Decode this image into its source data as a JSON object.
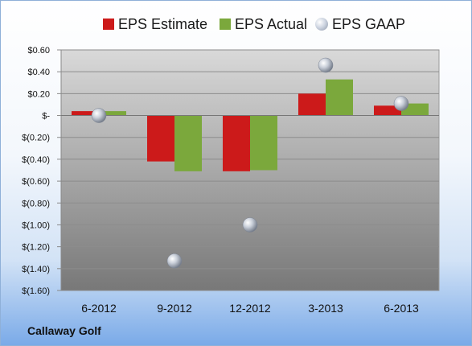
{
  "chart_data": {
    "type": "bar",
    "categories": [
      "6-2012",
      "9-2012",
      "12-2012",
      "3-2013",
      "6-2013"
    ],
    "series": [
      {
        "name": "EPS Estimate",
        "values": [
          0.04,
          -0.42,
          -0.51,
          0.2,
          0.09
        ],
        "color": "#cc1a1a"
      },
      {
        "name": "EPS Actual",
        "values": [
          0.04,
          -0.51,
          -0.5,
          0.33,
          0.11
        ],
        "color": "#7ba83c"
      }
    ],
    "scatter_series": {
      "name": "EPS GAAP",
      "values": [
        0.0,
        -1.33,
        -1.0,
        0.46,
        0.11
      ]
    },
    "ylim": [
      -1.6,
      0.6
    ],
    "yticks": [
      0.6,
      0.4,
      0.2,
      0,
      -0.2,
      -0.4,
      -0.6,
      -0.8,
      -1.0,
      -1.2,
      -1.4,
      -1.6
    ],
    "ytick_labels": [
      "$0.60",
      "$0.40",
      "$0.20",
      "$-",
      "$(0.20)",
      "$(0.40)",
      "$(0.60)",
      "$(0.80)",
      "$(1.00)",
      "$(1.20)",
      "$(1.40)",
      "$(1.60)"
    ],
    "grid": true,
    "legend_position": "top"
  },
  "legend": {
    "estimate_label": "EPS Estimate",
    "actual_label": "EPS Actual",
    "gaap_label": "EPS GAAP"
  },
  "footer": {
    "company": "Callaway Golf"
  }
}
